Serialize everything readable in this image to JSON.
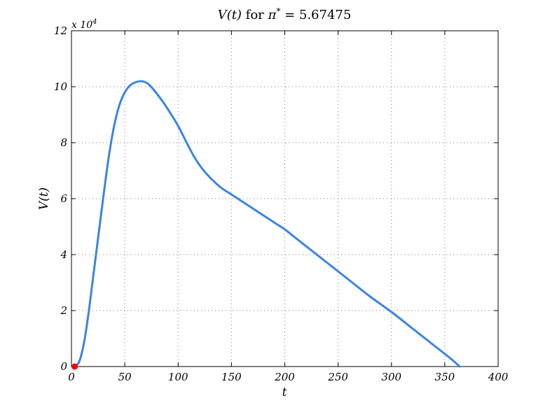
{
  "chart_data": {
    "type": "line",
    "title_main": "V(t) for π* = 5.67475",
    "title_parts": {
      "func": "V(t)",
      "for": " for ",
      "pi": "π",
      "star": "*",
      "eq": " = 5.67475"
    },
    "xlabel": "t",
    "ylabel": "V(t)",
    "y_multiplier": "x 10",
    "y_multiplier_exp": "4",
    "xlim": [
      0,
      400
    ],
    "ylim": [
      0,
      12
    ],
    "xticks": [
      "0",
      "50",
      "100",
      "150",
      "200",
      "250",
      "300",
      "350",
      "400"
    ],
    "yticks": [
      "0",
      "2",
      "4",
      "6",
      "8",
      "10",
      "12"
    ],
    "grid": true,
    "series": [
      {
        "color": "#3a84e6",
        "x": [
          3,
          5,
          8,
          12,
          16,
          20,
          25,
          30,
          35,
          40,
          45,
          50,
          55,
          60,
          65,
          68,
          72,
          78,
          85,
          92,
          100,
          108,
          115,
          122,
          130,
          140,
          150,
          160,
          170,
          180,
          190,
          200,
          210,
          220,
          240,
          260,
          280,
          300,
          320,
          340,
          355,
          364
        ],
        "y": [
          0,
          0.05,
          0.25,
          0.9,
          1.9,
          3.1,
          4.6,
          6.1,
          7.5,
          8.6,
          9.35,
          9.8,
          10.05,
          10.16,
          10.2,
          10.18,
          10.1,
          9.85,
          9.5,
          9.1,
          8.6,
          8.0,
          7.5,
          7.1,
          6.75,
          6.4,
          6.15,
          5.9,
          5.65,
          5.4,
          5.15,
          4.9,
          4.6,
          4.3,
          3.7,
          3.1,
          2.5,
          1.95,
          1.35,
          0.75,
          0.3,
          0
        ]
      }
    ],
    "marker": {
      "x": 3,
      "y": 0,
      "color": "#ff0000"
    }
  }
}
